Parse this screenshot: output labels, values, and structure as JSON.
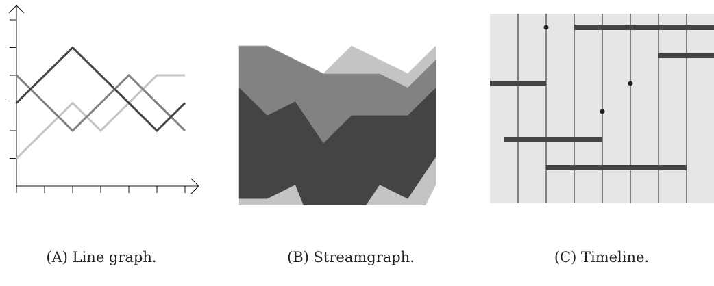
{
  "captions": {
    "a": "(A) Line graph.",
    "b": "(B) Streamgraph.",
    "c": "(C) Timeline."
  },
  "colors": {
    "dark": "#444444",
    "mid": "#828282",
    "light": "#c4c4c4",
    "timeline_bg": "#e6e6e6",
    "axis": "#111111"
  },
  "chart_data": [
    {
      "type": "line",
      "x": [
        0,
        1,
        2,
        3,
        4,
        5,
        6
      ],
      "series": [
        {
          "color": "#444444",
          "values": [
            3,
            4,
            5,
            4,
            3,
            2,
            3
          ]
        },
        {
          "color": "#828282",
          "values": [
            4,
            3,
            2,
            3,
            4,
            3,
            2
          ]
        },
        {
          "color": "#c4c4c4",
          "values": [
            1,
            2,
            3,
            2,
            3,
            4,
            4
          ]
        }
      ],
      "ylim": [
        0,
        6
      ],
      "grid": false
    },
    {
      "type": "area",
      "stacked": "streamgraph",
      "x": [
        0,
        1,
        2,
        3,
        4,
        5,
        6,
        7
      ],
      "series": [
        {
          "color": "#c4c4c4",
          "values": [
            2,
            2,
            2,
            3,
            3,
            3,
            3,
            2
          ]
        },
        {
          "color": "#444444",
          "values": [
            8,
            6,
            6,
            8,
            8,
            5,
            6,
            5
          ]
        },
        {
          "color": "#828282",
          "values": [
            3,
            5,
            3,
            5,
            3,
            3,
            2,
            2
          ]
        },
        {
          "color": "#c4c4c4",
          "values": [
            0,
            0,
            0,
            0,
            2,
            1,
            1,
            1
          ]
        }
      ],
      "baseline": [
        3,
        3,
        4,
        5,
        3,
        4,
        5,
        3
      ]
    },
    {
      "type": "timeline",
      "x_range": [
        0,
        8
      ],
      "lanes": 7,
      "intervals": [
        {
          "start": 3,
          "end": 8,
          "lane": 0
        },
        {
          "start": 6,
          "end": 8,
          "lane": 1
        },
        {
          "start": 0,
          "end": 2,
          "lane": 2
        },
        {
          "start": 0.5,
          "end": 4,
          "lane": 4
        },
        {
          "start": 2,
          "end": 7,
          "lane": 5
        }
      ],
      "events": [
        {
          "t": 2,
          "lane": 0
        },
        {
          "t": 5,
          "lane": 2
        },
        {
          "t": 4,
          "lane": 3
        }
      ]
    }
  ]
}
